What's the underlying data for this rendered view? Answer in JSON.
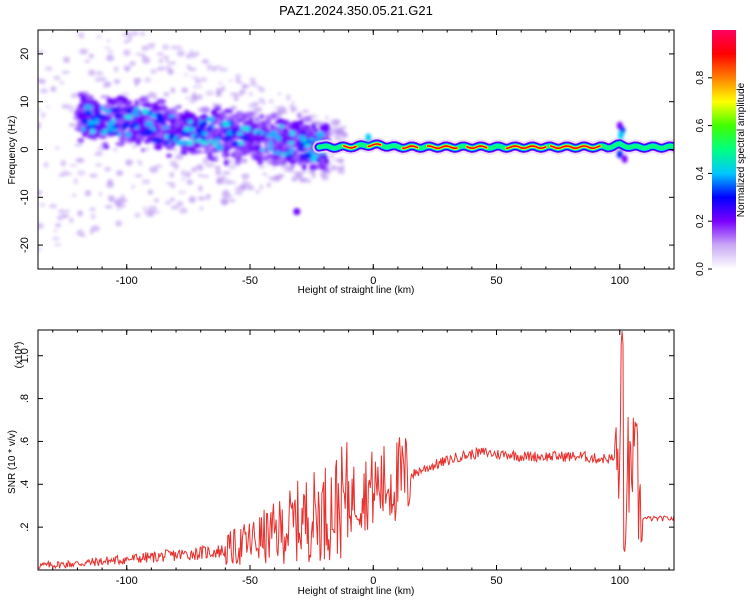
{
  "chart_data": [
    {
      "type": "heatmap",
      "title": "PAZ1.2024.350.05.21.G21",
      "xlabel": "Height of straight line (km)",
      "ylabel": "Frequency (Hz)",
      "xlim": [
        -136,
        122
      ],
      "ylim": [
        -25,
        25
      ],
      "xticks": [
        -100,
        -50,
        0,
        50,
        100
      ],
      "yticks": [
        -20,
        -10,
        0,
        10,
        20
      ],
      "colorbar": {
        "label": "Normalized spectral amplitude",
        "range": [
          0,
          1
        ],
        "ticks": [
          "0.0",
          "0.2",
          "0.4",
          "0.6",
          "0.8"
        ],
        "colors": [
          "#ffffff",
          "#c9a8f5",
          "#7a00ff",
          "#0000ff",
          "#00c8ff",
          "#00ff80",
          "#40ff00",
          "#ffff00",
          "#ff8000",
          "#ff0000",
          "#ff0060"
        ]
      },
      "ridge": {
        "x": [
          -130,
          -115,
          -100,
          -85,
          -70,
          -55,
          -40,
          -25,
          -20,
          -10,
          0,
          10,
          25,
          50,
          75,
          95,
          100,
          105,
          120
        ],
        "freq": [
          7,
          6.5,
          6,
          4.5,
          3.5,
          3,
          2,
          1,
          0.5,
          0.5,
          1,
          0.5,
          0.5,
          0.5,
          0.5,
          0.5,
          1,
          0.5,
          0.5
        ],
        "amplitude": [
          0.15,
          0.3,
          0.3,
          0.28,
          0.27,
          0.26,
          0.24,
          0.22,
          0.35,
          0.5,
          0.6,
          0.8,
          0.85,
          0.9,
          0.92,
          0.9,
          0.6,
          0.5,
          0.45
        ]
      }
    },
    {
      "type": "line",
      "xlabel": "Height of straight line (km)",
      "ylabel": "SNR (10 * v/v)",
      "yscale_label": "(x10",
      "yscale_exp": "4",
      "xlim": [
        -136,
        122
      ],
      "ylim": [
        0,
        1.12
      ],
      "xticks": [
        -100,
        -50,
        0,
        50,
        100
      ],
      "yticks": [
        0.2,
        0.4,
        0.6,
        0.8,
        1.0
      ],
      "line_color": "#e8302c",
      "series": [
        {
          "x": [
            -136,
            -120,
            -100,
            -90,
            -80,
            -70,
            -60,
            -55,
            -50,
            -45,
            -40,
            -35,
            -30,
            -25,
            -20,
            -15,
            -10,
            -5,
            0,
            5,
            10,
            15,
            20,
            25,
            30,
            35,
            40,
            45,
            50,
            55,
            60,
            65,
            70,
            75,
            80,
            85,
            90,
            95,
            98,
            100,
            101,
            102,
            103,
            104,
            105,
            106,
            107,
            108,
            110,
            115,
            122
          ],
          "y": [
            0.02,
            0.03,
            0.05,
            0.06,
            0.07,
            0.08,
            0.09,
            0.11,
            0.13,
            0.15,
            0.17,
            0.2,
            0.23,
            0.25,
            0.27,
            0.3,
            0.33,
            0.36,
            0.38,
            0.4,
            0.42,
            0.44,
            0.47,
            0.49,
            0.51,
            0.53,
            0.54,
            0.55,
            0.54,
            0.54,
            0.53,
            0.53,
            0.53,
            0.53,
            0.53,
            0.53,
            0.52,
            0.52,
            0.52,
            0.51,
            0.3,
            0.1,
            0.6,
            0.35,
            0.55,
            0.45,
            0.47,
            0.25,
            0.24,
            0.24,
            0.24
          ]
        }
      ]
    }
  ]
}
